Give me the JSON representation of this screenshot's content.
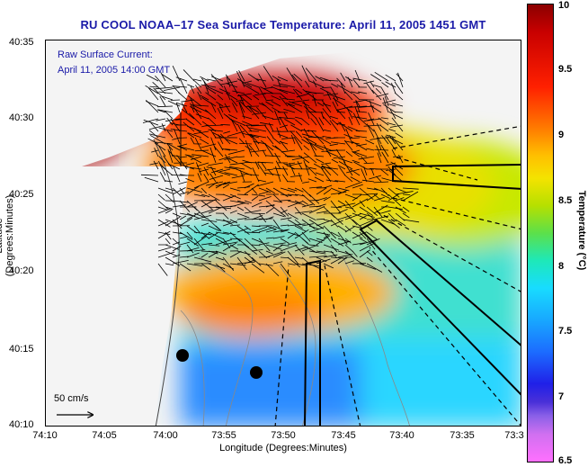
{
  "title": "RU COOL  NOAA–17  Sea Surface Temperature:  April 11, 2005 1451 GMT",
  "current_label": {
    "line1": "Raw Surface Current:",
    "line2": "April 11, 2005 14:00 GMT"
  },
  "axes": {
    "xlabel": "Longitude (Degrees:Minutes)",
    "ylabel": "Latitude (Degrees:Minutes)",
    "xticks": [
      "74:10",
      "74:05",
      "74:00",
      "73:55",
      "73:50",
      "73:45",
      "73:40",
      "73:35",
      "73:3"
    ],
    "yticks": [
      "40:35",
      "40:30",
      "40:25",
      "40:20",
      "40:15",
      "40:10"
    ]
  },
  "colorbar": {
    "title": "Temperature (°C)",
    "ticks": [
      "10",
      "9.5",
      "9",
      "8.5",
      "8",
      "7.5",
      "7",
      "6.5"
    ],
    "range": [
      6.5,
      10
    ]
  },
  "scale_arrow": {
    "label": "50 cm/s"
  },
  "colors": {
    "title": "#1a1aa8",
    "land": "#f4f4f4"
  }
}
